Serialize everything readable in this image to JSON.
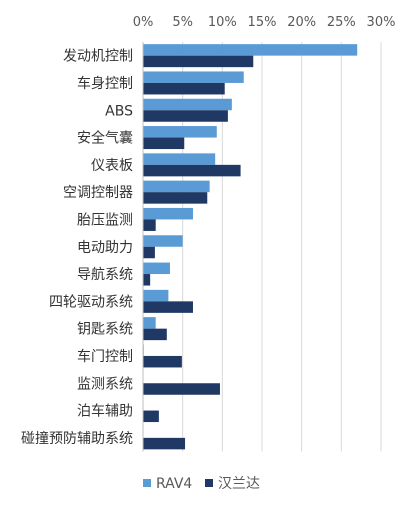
{
  "chart_data": {
    "type": "bar",
    "orientation": "horizontal",
    "title": "",
    "xlabel": "",
    "ylabel": "",
    "xlim": [
      0,
      30
    ],
    "x_ticks": [
      "0%",
      "5%",
      "10%",
      "15%",
      "20%",
      "25%",
      "30%"
    ],
    "x_axis_position": "top",
    "grid": true,
    "legend_position": "bottom",
    "categories": [
      "发动机控制",
      "车身控制",
      "ABS",
      "安全气囊",
      "仪表板",
      "空调控制器",
      "胎压监测",
      "电动助力",
      "导航系统",
      "四轮驱动系统",
      "钥匙系统",
      "车门控制",
      "监测系统",
      "泊车辅助",
      "碰撞预防辅助系统"
    ],
    "series": [
      {
        "name": "RAV4",
        "color": "#5b9bd5",
        "values": [
          27.0,
          12.7,
          11.2,
          9.3,
          9.1,
          8.4,
          6.3,
          5.0,
          3.4,
          3.2,
          1.6,
          0.1,
          0.0,
          0.0,
          0.0
        ]
      },
      {
        "name": "汉兰达",
        "color": "#203864",
        "values": [
          13.9,
          10.3,
          10.7,
          5.2,
          12.3,
          8.1,
          1.6,
          1.5,
          0.9,
          6.3,
          3.0,
          4.9,
          9.7,
          2.0,
          5.3
        ]
      }
    ]
  }
}
